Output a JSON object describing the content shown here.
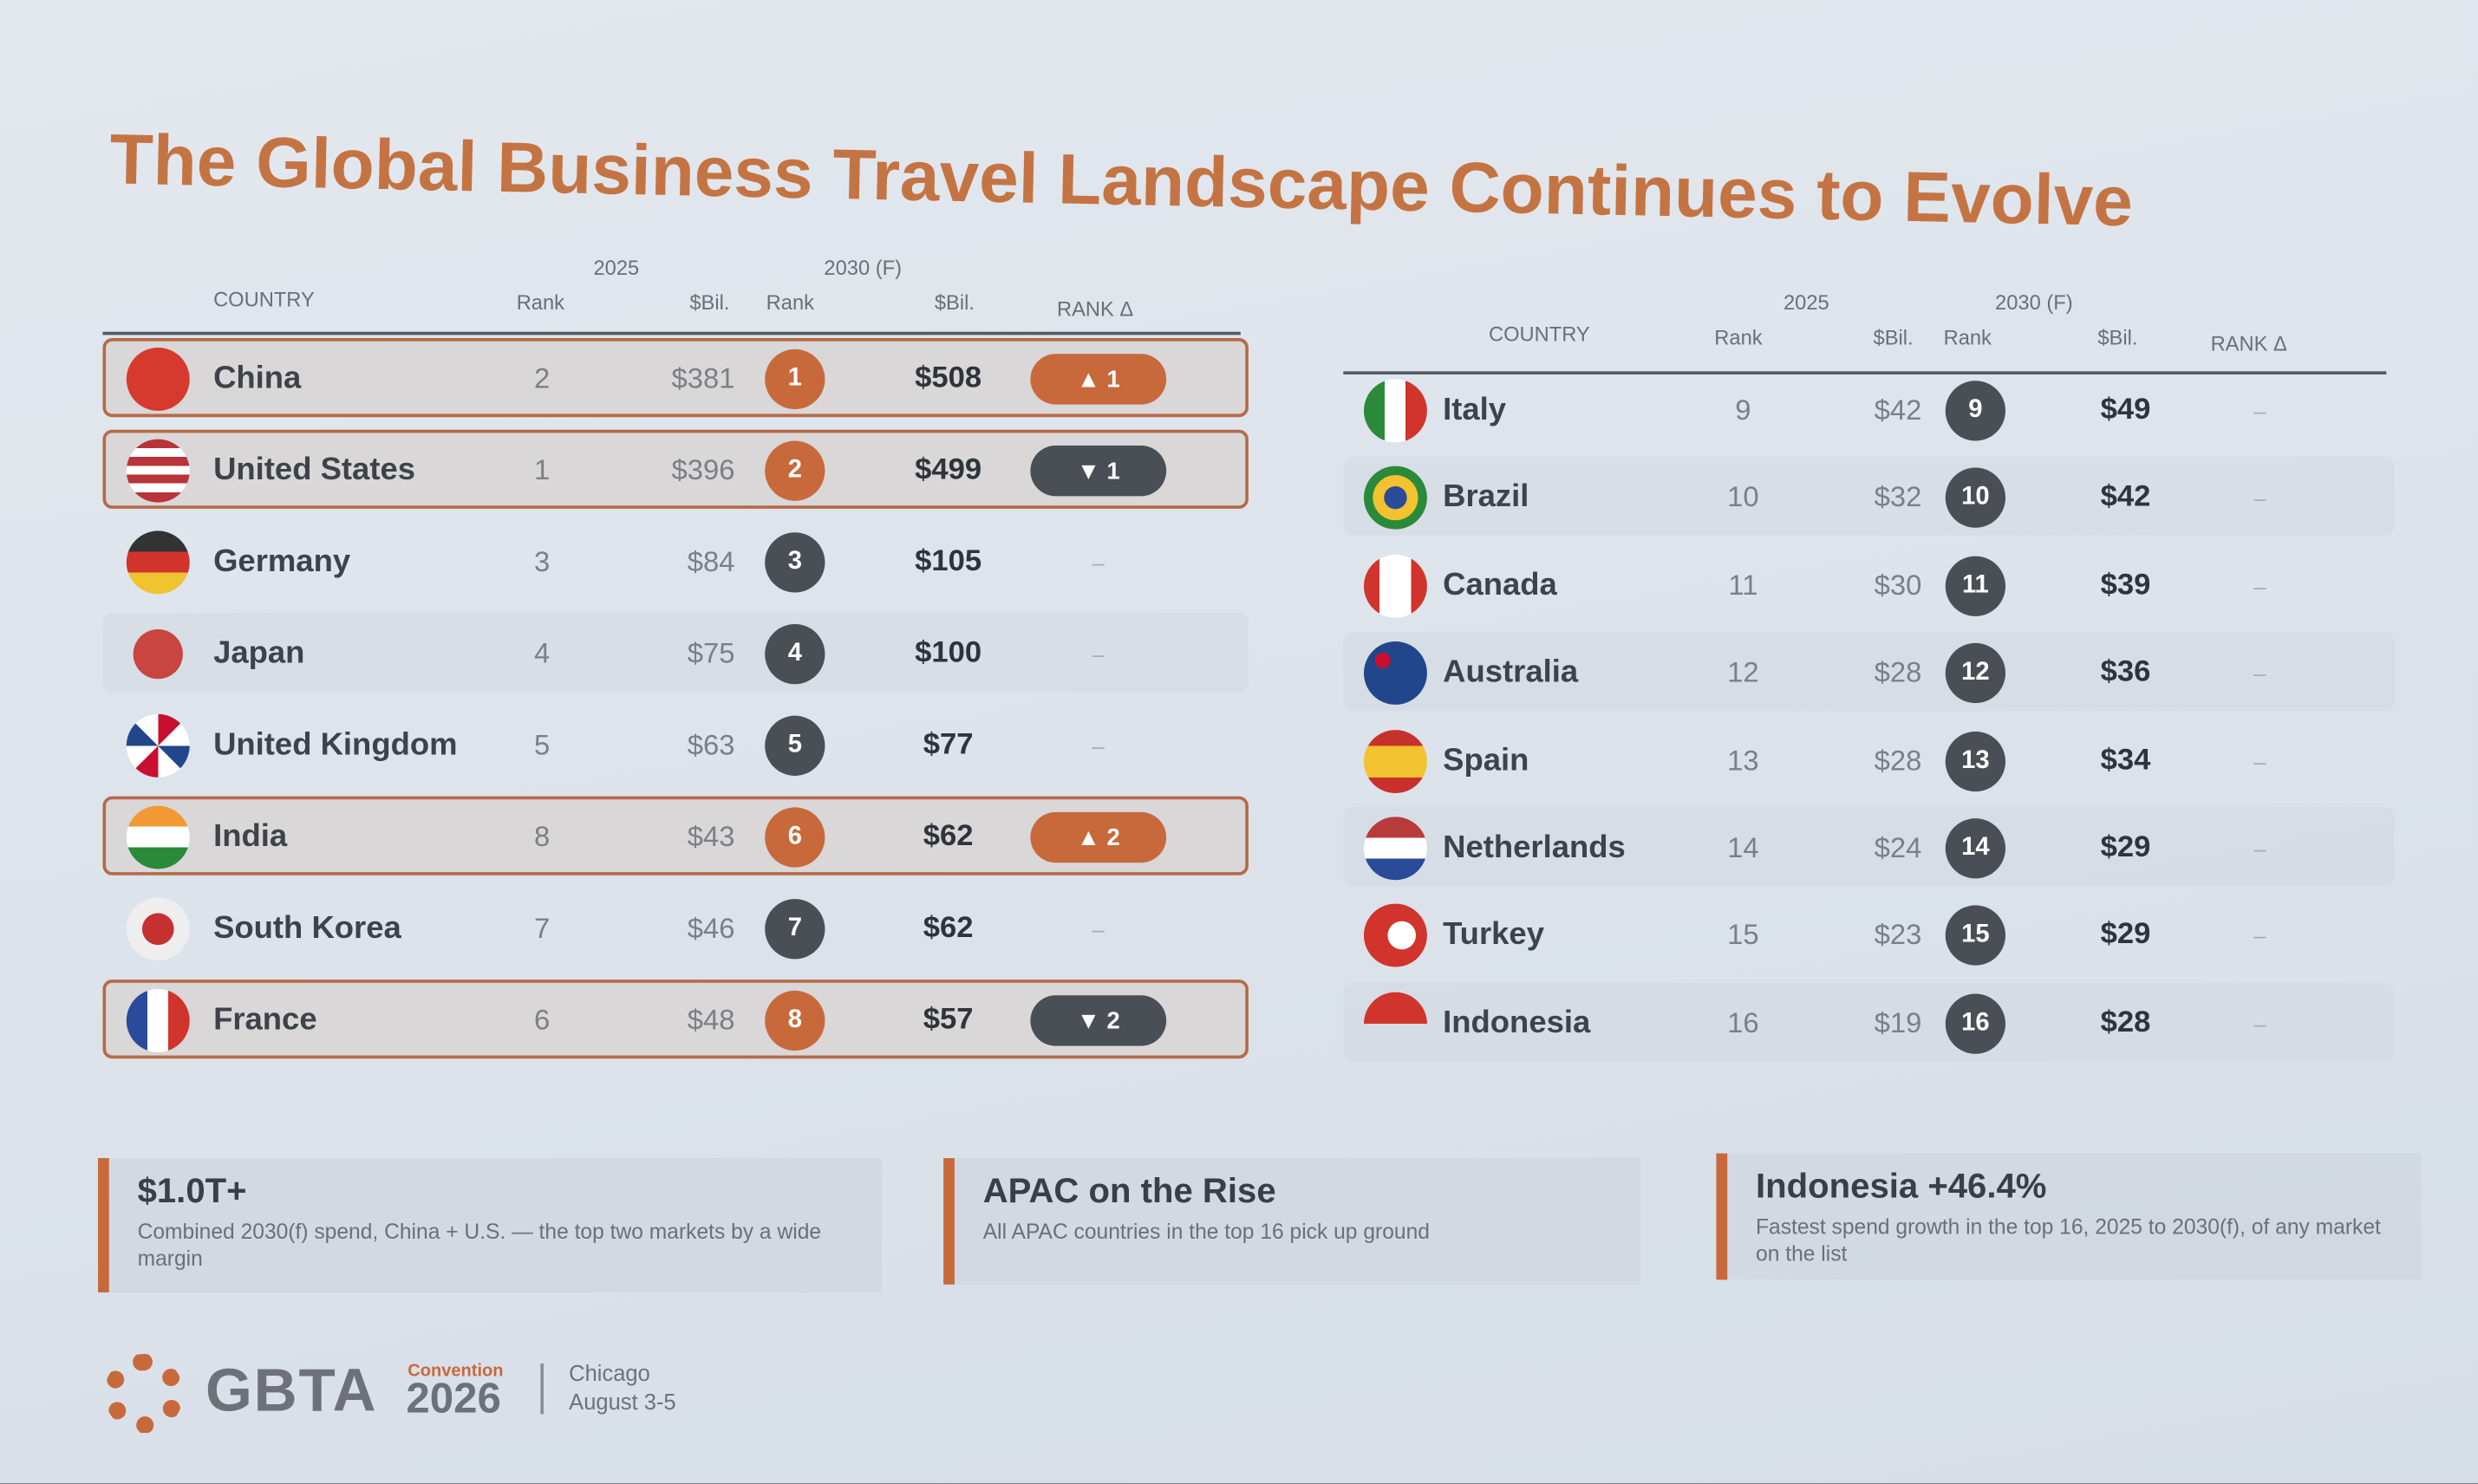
{
  "title": "The Global Business Travel Landscape Continues to Evolve",
  "tables": [
    {
      "header": {
        "country": "COUNTRY",
        "year_2025": "2025",
        "year_2030": "2030 (F)",
        "rank_2025": "Rank",
        "spend_2025": "$Bil.",
        "rank_2030": "Rank",
        "spend_2030": "$Bil.",
        "rank_change": "RANK Δ"
      },
      "rows": [
        {
          "country": "China",
          "rank_2025": "2",
          "spend_2025": "$381",
          "rank_2030": "1",
          "spend_2030": "$508",
          "rank_change": "▲ 1"
        },
        {
          "country": "United States",
          "rank_2025": "1",
          "spend_2025": "$396",
          "rank_2030": "2",
          "spend_2030": "$499",
          "rank_change": "▼ 1"
        },
        {
          "country": "Germany",
          "rank_2025": "3",
          "spend_2025": "$84",
          "rank_2030": "3",
          "spend_2030": "$105",
          "rank_change": "–"
        },
        {
          "country": "Japan",
          "rank_2025": "4",
          "spend_2025": "$75",
          "rank_2030": "4",
          "spend_2030": "$100",
          "rank_change": "–"
        },
        {
          "country": "United Kingdom",
          "rank_2025": "5",
          "spend_2025": "$63",
          "rank_2030": "5",
          "spend_2030": "$77",
          "rank_change": "–"
        },
        {
          "country": "India",
          "rank_2025": "8",
          "spend_2025": "$43",
          "rank_2030": "6",
          "spend_2030": "$62",
          "rank_change": "▲ 2"
        },
        {
          "country": "South Korea",
          "rank_2025": "7",
          "spend_2025": "$46",
          "rank_2030": "7",
          "spend_2030": "$62",
          "rank_change": "–"
        },
        {
          "country": "France",
          "rank_2025": "6",
          "spend_2025": "$48",
          "rank_2030": "8",
          "spend_2030": "$57",
          "rank_change": "▼ 2"
        }
      ]
    },
    {
      "header": {
        "country": "COUNTRY",
        "year_2025": "2025",
        "year_2030": "2030 (F)",
        "rank_2025": "Rank",
        "spend_2025": "$Bil.",
        "rank_2030": "Rank",
        "spend_2030": "$Bil.",
        "rank_change": "RANK Δ"
      },
      "rows": [
        {
          "country": "Italy",
          "rank_2025": "9",
          "spend_2025": "$42",
          "rank_2030": "9",
          "spend_2030": "$49",
          "rank_change": "–"
        },
        {
          "country": "Brazil",
          "rank_2025": "10",
          "spend_2025": "$32",
          "rank_2030": "10",
          "spend_2030": "$42",
          "rank_change": "–"
        },
        {
          "country": "Canada",
          "rank_2025": "11",
          "spend_2025": "$30",
          "rank_2030": "11",
          "spend_2030": "$39",
          "rank_change": "–"
        },
        {
          "country": "Australia",
          "rank_2025": "12",
          "spend_2025": "$28",
          "rank_2030": "12",
          "spend_2030": "$36",
          "rank_change": "–"
        },
        {
          "country": "Spain",
          "rank_2025": "13",
          "spend_2025": "$28",
          "rank_2030": "13",
          "spend_2030": "$34",
          "rank_change": "–"
        },
        {
          "country": "Netherlands",
          "rank_2025": "14",
          "spend_2025": "$24",
          "rank_2030": "14",
          "spend_2030": "$29",
          "rank_change": "–"
        },
        {
          "country": "Turkey",
          "rank_2025": "15",
          "spend_2025": "$23",
          "rank_2030": "15",
          "spend_2030": "$29",
          "rank_change": "–"
        },
        {
          "country": "Indonesia",
          "rank_2025": "16",
          "spend_2025": "$19",
          "rank_2030": "16",
          "spend_2030": "$28",
          "rank_change": "–"
        }
      ]
    }
  ],
  "callouts": [
    {
      "title": "$1.0T+",
      "text": "Combined 2030(f) spend, China + U.S. — the top two markets by a wide margin"
    },
    {
      "title": "APAC on the Rise",
      "text": "All APAC countries in the top 16 pick up ground"
    },
    {
      "title": "Indonesia +46.4%",
      "text": "Fastest spend growth in the top 16, 2025 to 2030(f), of any market on the list"
    }
  ],
  "footer": {
    "brand": "GBTA",
    "event": "Convention",
    "year": "2026",
    "city": "Chicago",
    "dates": "August 3-5"
  }
}
